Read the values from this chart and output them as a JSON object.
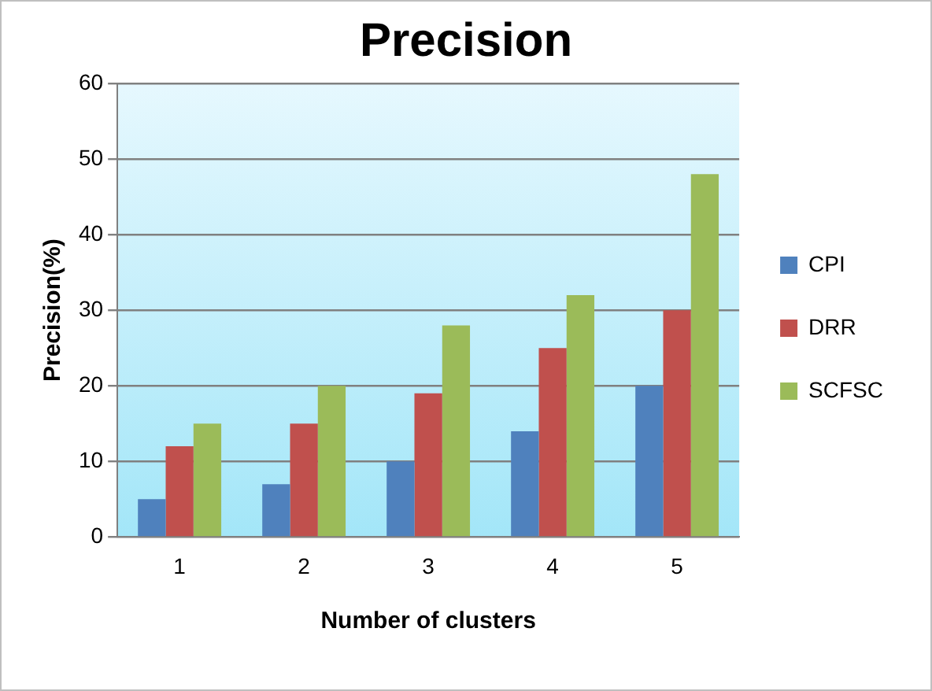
{
  "chart_data": {
    "type": "bar",
    "title": "Precision",
    "xlabel": "Number of clusters",
    "ylabel": "Precision(%)",
    "categories": [
      "1",
      "2",
      "3",
      "4",
      "5"
    ],
    "series": [
      {
        "name": "CPI",
        "color": "#4f81bd",
        "values": [
          5,
          7,
          10,
          14,
          20
        ]
      },
      {
        "name": "DRR",
        "color": "#c0504d",
        "values": [
          12,
          15,
          19,
          25,
          30
        ]
      },
      {
        "name": "SCFSC",
        "color": "#9bbb59",
        "values": [
          15,
          20,
          28,
          32,
          48
        ]
      }
    ],
    "ylim": [
      0,
      60
    ],
    "yticks": [
      0,
      10,
      20,
      30,
      40,
      50,
      60
    ],
    "grid": "y",
    "legend": "right"
  }
}
